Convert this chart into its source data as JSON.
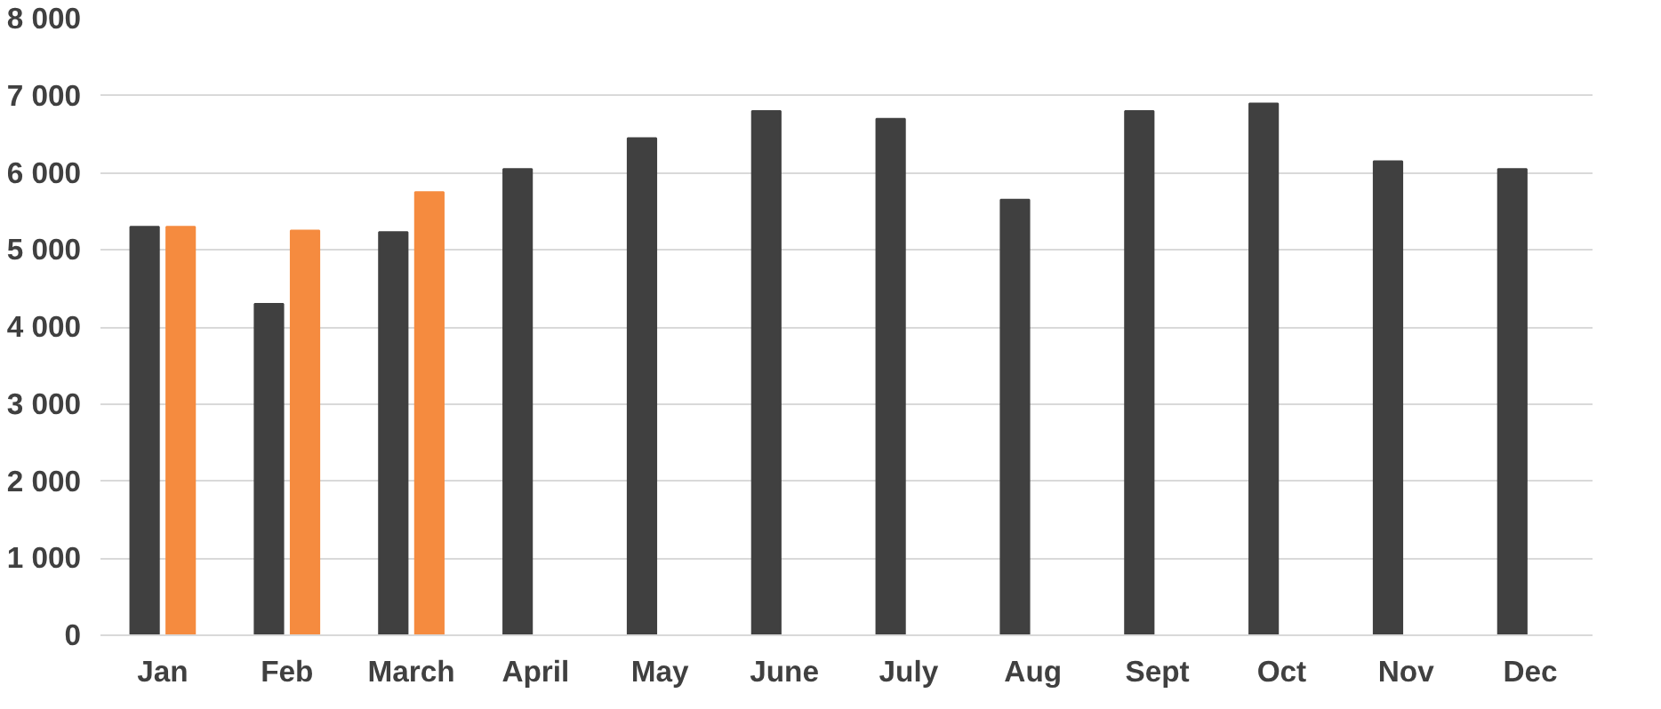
{
  "chart_data": {
    "type": "bar",
    "categories": [
      "Jan",
      "Feb",
      "March",
      "April",
      "May",
      "June",
      "July",
      "Aug",
      "Sept",
      "Oct",
      "Nov",
      "Dec"
    ],
    "series": [
      {
        "color": "#404040",
        "values": [
          5300,
          4300,
          5230,
          6050,
          6450,
          6800,
          6700,
          5650,
          6800,
          6900,
          6150,
          6050
        ]
      },
      {
        "color": "#f58b3f",
        "values": [
          5300,
          5250,
          5750,
          null,
          null,
          null,
          null,
          null,
          null,
          null,
          null,
          null
        ]
      }
    ],
    "ylim": [
      0,
      8000
    ],
    "yticks": [
      {
        "value": 0,
        "label": "0"
      },
      {
        "value": 1000,
        "label": "1 000"
      },
      {
        "value": 2000,
        "label": "2 000"
      },
      {
        "value": 3000,
        "label": "3 000"
      },
      {
        "value": 4000,
        "label": "4 000"
      },
      {
        "value": 5000,
        "label": "5 000"
      },
      {
        "value": 6000,
        "label": "6 000"
      },
      {
        "value": 7000,
        "label": "7 000"
      },
      {
        "value": 8000,
        "label": "8 000"
      }
    ],
    "grid": "y"
  }
}
